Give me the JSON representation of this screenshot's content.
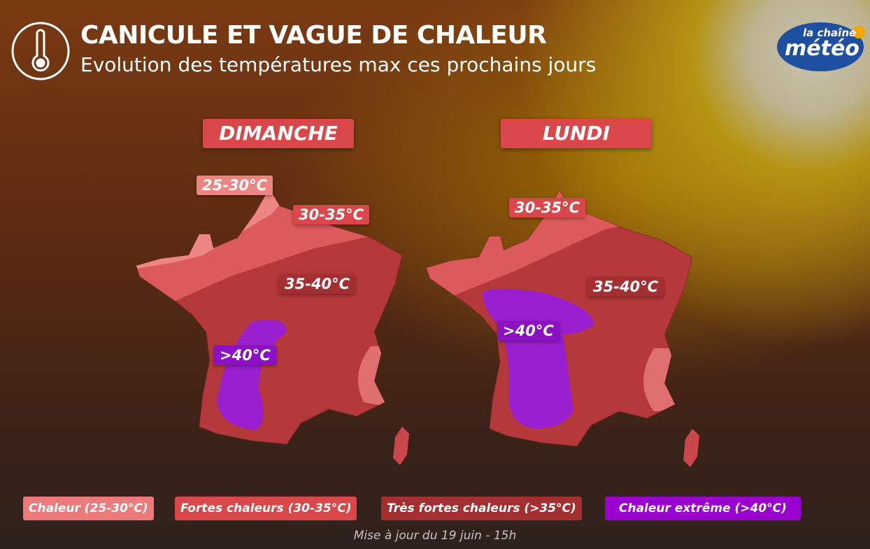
{
  "header": {
    "title": "CANICULE ET VAGUE DE CHALEUR",
    "subtitle": "Evolution des températures max ces prochains jours"
  },
  "logo": {
    "top": "la chaîne",
    "main": "météo"
  },
  "maps": [
    {
      "day": "DIMANCHE",
      "labels": [
        "25-30°C",
        "30-35°C",
        "35-40°C",
        ">40°C"
      ]
    },
    {
      "day": "LUNDI",
      "labels": [
        "30-35°C",
        "35-40°C",
        ">40°C"
      ]
    }
  ],
  "legend": [
    "Chaleur (25-30°C)",
    "Fortes chaleurs (30-35°C)",
    "Très fortes chaleurs (>35°C)",
    "Chaleur extrême (>40°C)"
  ],
  "footer": "Mise à jour du 19 juin - 15h"
}
